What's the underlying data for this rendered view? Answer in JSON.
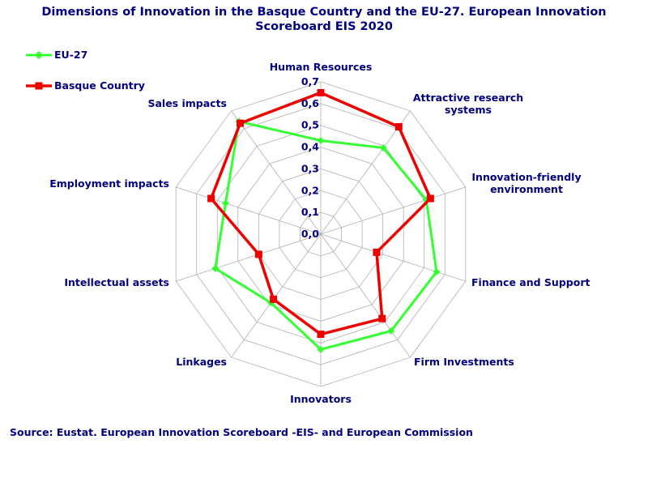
{
  "title_lines": [
    "Dimensions of Innovation in the Basque Country and the EU-27. European Innovation",
    "Scoreboard EIS 2020"
  ],
  "source": "Source: Eustat. European Innovation Scoreboard -EIS- and European Commission",
  "colors": {
    "text": "#000080",
    "grid": "#b0b0b0",
    "eu27": "#33ff33",
    "basque": "#ee0000"
  },
  "chart_data": {
    "type": "radar",
    "title": "Dimensions of Innovation in the Basque Country and the EU-27. European Innovation Scoreboard EIS 2020",
    "categories": [
      "Human Resources",
      "Attractive research systems",
      "Innovation-friendly environment",
      "Finance and Support",
      "Firm Investments",
      "Innovators",
      "Linkages",
      "Intellectual assets",
      "Employment impacts",
      "Sales impacts"
    ],
    "rlim": [
      0,
      0.7
    ],
    "ticks": [
      "0,0",
      "0,1",
      "0,2",
      "0,3",
      "0,4",
      "0,5",
      "0,6",
      "0,7"
    ],
    "series": [
      {
        "name": "EU-27",
        "color": "#33ff33",
        "marker": "diamond",
        "values": [
          0.43,
          0.49,
          0.51,
          0.56,
          0.55,
          0.53,
          0.39,
          0.51,
          0.46,
          0.64
        ]
      },
      {
        "name": "Basque Country",
        "color": "#ee0000",
        "marker": "square",
        "values": [
          0.65,
          0.61,
          0.53,
          0.27,
          0.48,
          0.46,
          0.37,
          0.3,
          0.53,
          0.63
        ]
      }
    ],
    "legend_position": "top-left",
    "grid": true
  }
}
